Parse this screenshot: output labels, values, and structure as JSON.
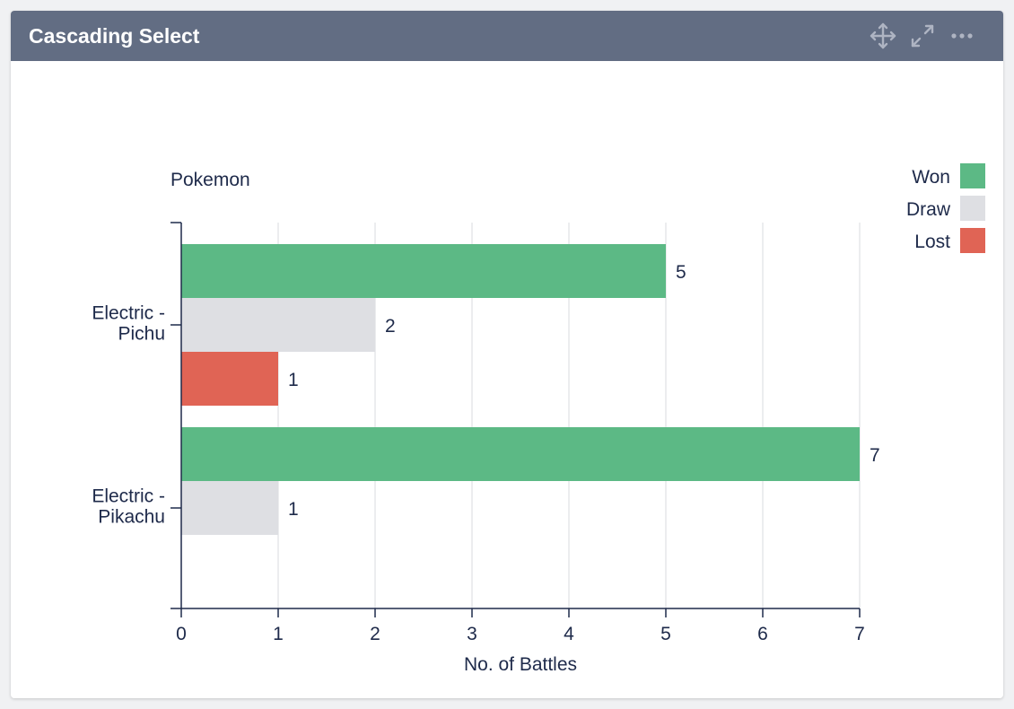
{
  "card": {
    "title": "Cascading Select",
    "actions": [
      {
        "name": "move-icon",
        "label": "Move"
      },
      {
        "name": "expand-icon",
        "label": "Expand"
      },
      {
        "name": "more-icon",
        "label": "More options"
      }
    ]
  },
  "chart_data": {
    "type": "bar",
    "orientation": "horizontal",
    "title": "",
    "ylabel": "Pokemon",
    "xlabel": "No. of Battles",
    "xlim": [
      0,
      7
    ],
    "xticks": [
      0,
      1,
      2,
      3,
      4,
      5,
      6,
      7
    ],
    "grid": true,
    "legend_position": "top-right",
    "categories": [
      "Electric - Pichu",
      "Electric - Pikachu"
    ],
    "category_lines": [
      [
        "Electric -",
        "Pichu"
      ],
      [
        "Electric -",
        "Pikachu"
      ]
    ],
    "series": [
      {
        "name": "Won",
        "color": "#5cb985",
        "values": [
          5,
          7
        ]
      },
      {
        "name": "Draw",
        "color": "#dedfe3",
        "values": [
          2,
          1
        ]
      },
      {
        "name": "Lost",
        "color": "#e06455",
        "values": [
          1,
          null
        ]
      }
    ],
    "text_color": "#1e2a4a",
    "grid_color": "#e6e7ea"
  }
}
